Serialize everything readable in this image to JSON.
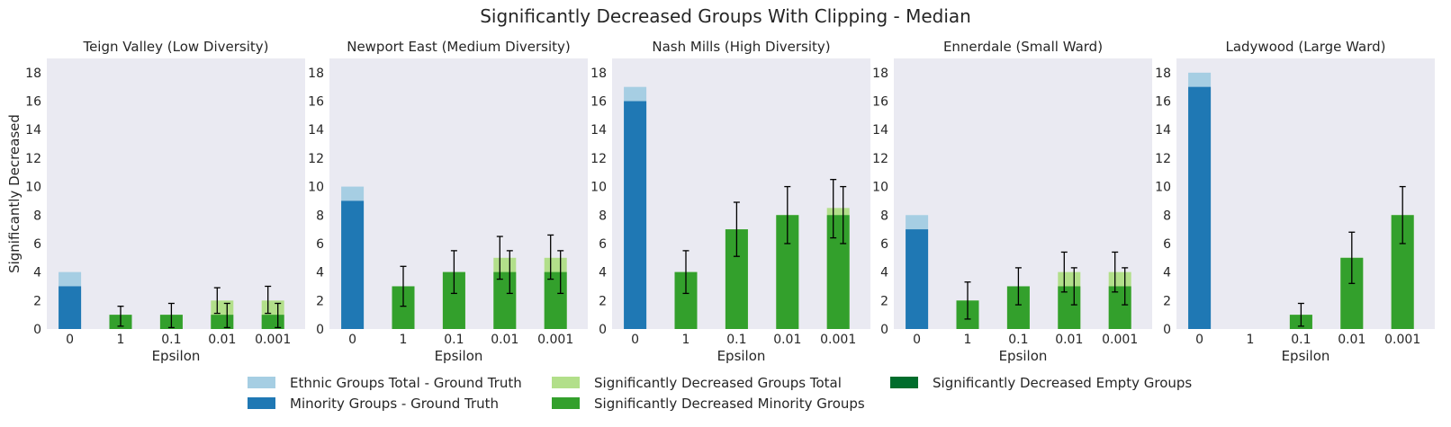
{
  "chart_data": {
    "type": "bar",
    "title": "Significantly Decreased Groups With Clipping - Median",
    "ylabel": "Significantly Decreased",
    "xlabel": "Epsilon",
    "categories": [
      "0",
      "1",
      "0.1",
      "0.01",
      "0.001"
    ],
    "ylim": [
      0,
      19
    ],
    "yticks": [
      0,
      2,
      4,
      6,
      8,
      10,
      12,
      14,
      16,
      18
    ],
    "grid": false,
    "legend_position": "bottom-center",
    "colors": {
      "ethnic_total_gt": "#a6cee3",
      "minority_gt": "#1f78b4",
      "decreased_total": "#b2df8a",
      "decreased_minority": "#33a02c",
      "decreased_empty": "#006d2c",
      "axes_bg": "#eaeaf2",
      "errorbar": "#000000"
    },
    "legend": [
      {
        "key": "ethnic_total_gt",
        "label": "Ethnic Groups Total - Ground Truth"
      },
      {
        "key": "minority_gt",
        "label": "Minority Groups - Ground Truth"
      },
      {
        "key": "decreased_total",
        "label": "Significantly Decreased Groups Total"
      },
      {
        "key": "decreased_minority",
        "label": "Significantly Decreased Minority Groups"
      },
      {
        "key": "decreased_empty",
        "label": "Significantly Decreased Empty Groups"
      }
    ],
    "panels": [
      {
        "title": "Teign Valley (Low Diversity)",
        "ground_truth": {
          "ethnic_total": 4,
          "minority": 3
        },
        "decreased_total": [
          null,
          1,
          1,
          2,
          2
        ],
        "decreased_total_err": [
          null,
          null,
          null,
          [
            1.1,
            2.9
          ],
          [
            1.1,
            3.0
          ]
        ],
        "decreased_minority": [
          null,
          1,
          1,
          1,
          1
        ],
        "decreased_minority_err": [
          null,
          [
            0.2,
            1.6
          ],
          [
            0.1,
            1.8
          ],
          [
            0.1,
            1.8
          ],
          [
            0.1,
            1.8
          ]
        ]
      },
      {
        "title": "Newport East (Medium Diversity)",
        "ground_truth": {
          "ethnic_total": 10,
          "minority": 9
        },
        "decreased_total": [
          null,
          3,
          4,
          5,
          5
        ],
        "decreased_total_err": [
          null,
          null,
          null,
          [
            3.5,
            6.5
          ],
          [
            3.5,
            6.6
          ]
        ],
        "decreased_minority": [
          null,
          3,
          4,
          4,
          4
        ],
        "decreased_minority_err": [
          null,
          [
            1.6,
            4.4
          ],
          [
            2.5,
            5.5
          ],
          [
            2.5,
            5.5
          ],
          [
            2.5,
            5.5
          ]
        ]
      },
      {
        "title": "Nash Mills (High Diversity)",
        "ground_truth": {
          "ethnic_total": 17,
          "minority": 16
        },
        "decreased_total": [
          null,
          4,
          7,
          8,
          8.5
        ],
        "decreased_total_err": [
          null,
          null,
          null,
          null,
          [
            6.4,
            10.5
          ]
        ],
        "decreased_minority": [
          null,
          4,
          7,
          8,
          8
        ],
        "decreased_minority_err": [
          null,
          [
            2.5,
            5.5
          ],
          [
            5.1,
            8.9
          ],
          [
            6.0,
            10.0
          ],
          [
            6.0,
            10.0
          ]
        ]
      },
      {
        "title": "Ennerdale (Small Ward)",
        "ground_truth": {
          "ethnic_total": 8,
          "minority": 7
        },
        "decreased_total": [
          null,
          2,
          3,
          4,
          4
        ],
        "decreased_total_err": [
          null,
          null,
          null,
          [
            2.6,
            5.4
          ],
          [
            2.6,
            5.4
          ]
        ],
        "decreased_minority": [
          null,
          2,
          3,
          3,
          3
        ],
        "decreased_minority_err": [
          null,
          [
            0.7,
            3.3
          ],
          [
            1.7,
            4.3
          ],
          [
            1.7,
            4.3
          ],
          [
            1.7,
            4.3
          ]
        ]
      },
      {
        "title": "Ladywood (Large Ward)",
        "ground_truth": {
          "ethnic_total": 18,
          "minority": 17
        },
        "decreased_total": [
          null,
          0,
          1,
          5,
          8
        ],
        "decreased_total_err": [
          null,
          null,
          null,
          null,
          null
        ],
        "decreased_minority": [
          null,
          0,
          1,
          5,
          8
        ],
        "decreased_minority_err": [
          null,
          null,
          [
            0.2,
            1.8
          ],
          [
            3.2,
            6.8
          ],
          [
            6.0,
            10.0
          ]
        ]
      }
    ]
  }
}
